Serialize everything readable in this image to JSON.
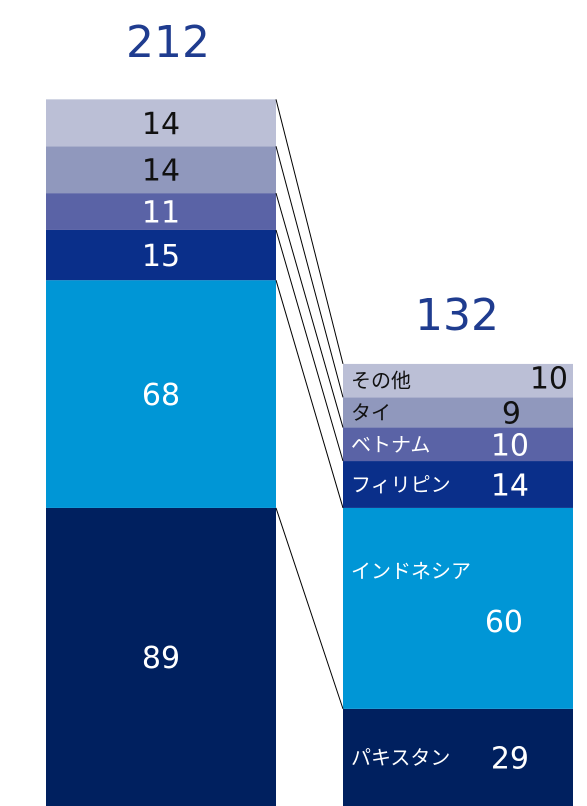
{
  "chart_data": {
    "type": "bar",
    "stacked": true,
    "categories": [
      "left",
      "right"
    ],
    "totals": [
      "212",
      "132"
    ],
    "series": [
      {
        "name": "パキスタン",
        "values": [
          89,
          29
        ],
        "color": "#00205f"
      },
      {
        "name": "インドネシア",
        "values": [
          68,
          60
        ],
        "color": "#0096d6"
      },
      {
        "name": "フィリピン",
        "values": [
          15,
          14
        ],
        "color": "#0a2f8a"
      },
      {
        "name": "ベトナム",
        "values": [
          11,
          10
        ],
        "color": "#5a63a6"
      },
      {
        "name": "タイ",
        "values": [
          14,
          9
        ],
        "color": "#9098bd"
      },
      {
        "name": "その他",
        "values": [
          14,
          10
        ],
        "color": "#bbbfd6"
      }
    ],
    "right_labels": [
      {
        "name": "パキスタン",
        "value": "29"
      },
      {
        "name": "インドネシア",
        "value": "60"
      },
      {
        "name": "フィリピン",
        "value": "14"
      },
      {
        "name": "ベトナム",
        "value": "10"
      },
      {
        "name": "タイ",
        "value": "9"
      },
      {
        "name": "その他",
        "value": "10"
      }
    ],
    "left_labels": [
      "89",
      "68",
      "15",
      "11",
      "14",
      "14"
    ]
  }
}
